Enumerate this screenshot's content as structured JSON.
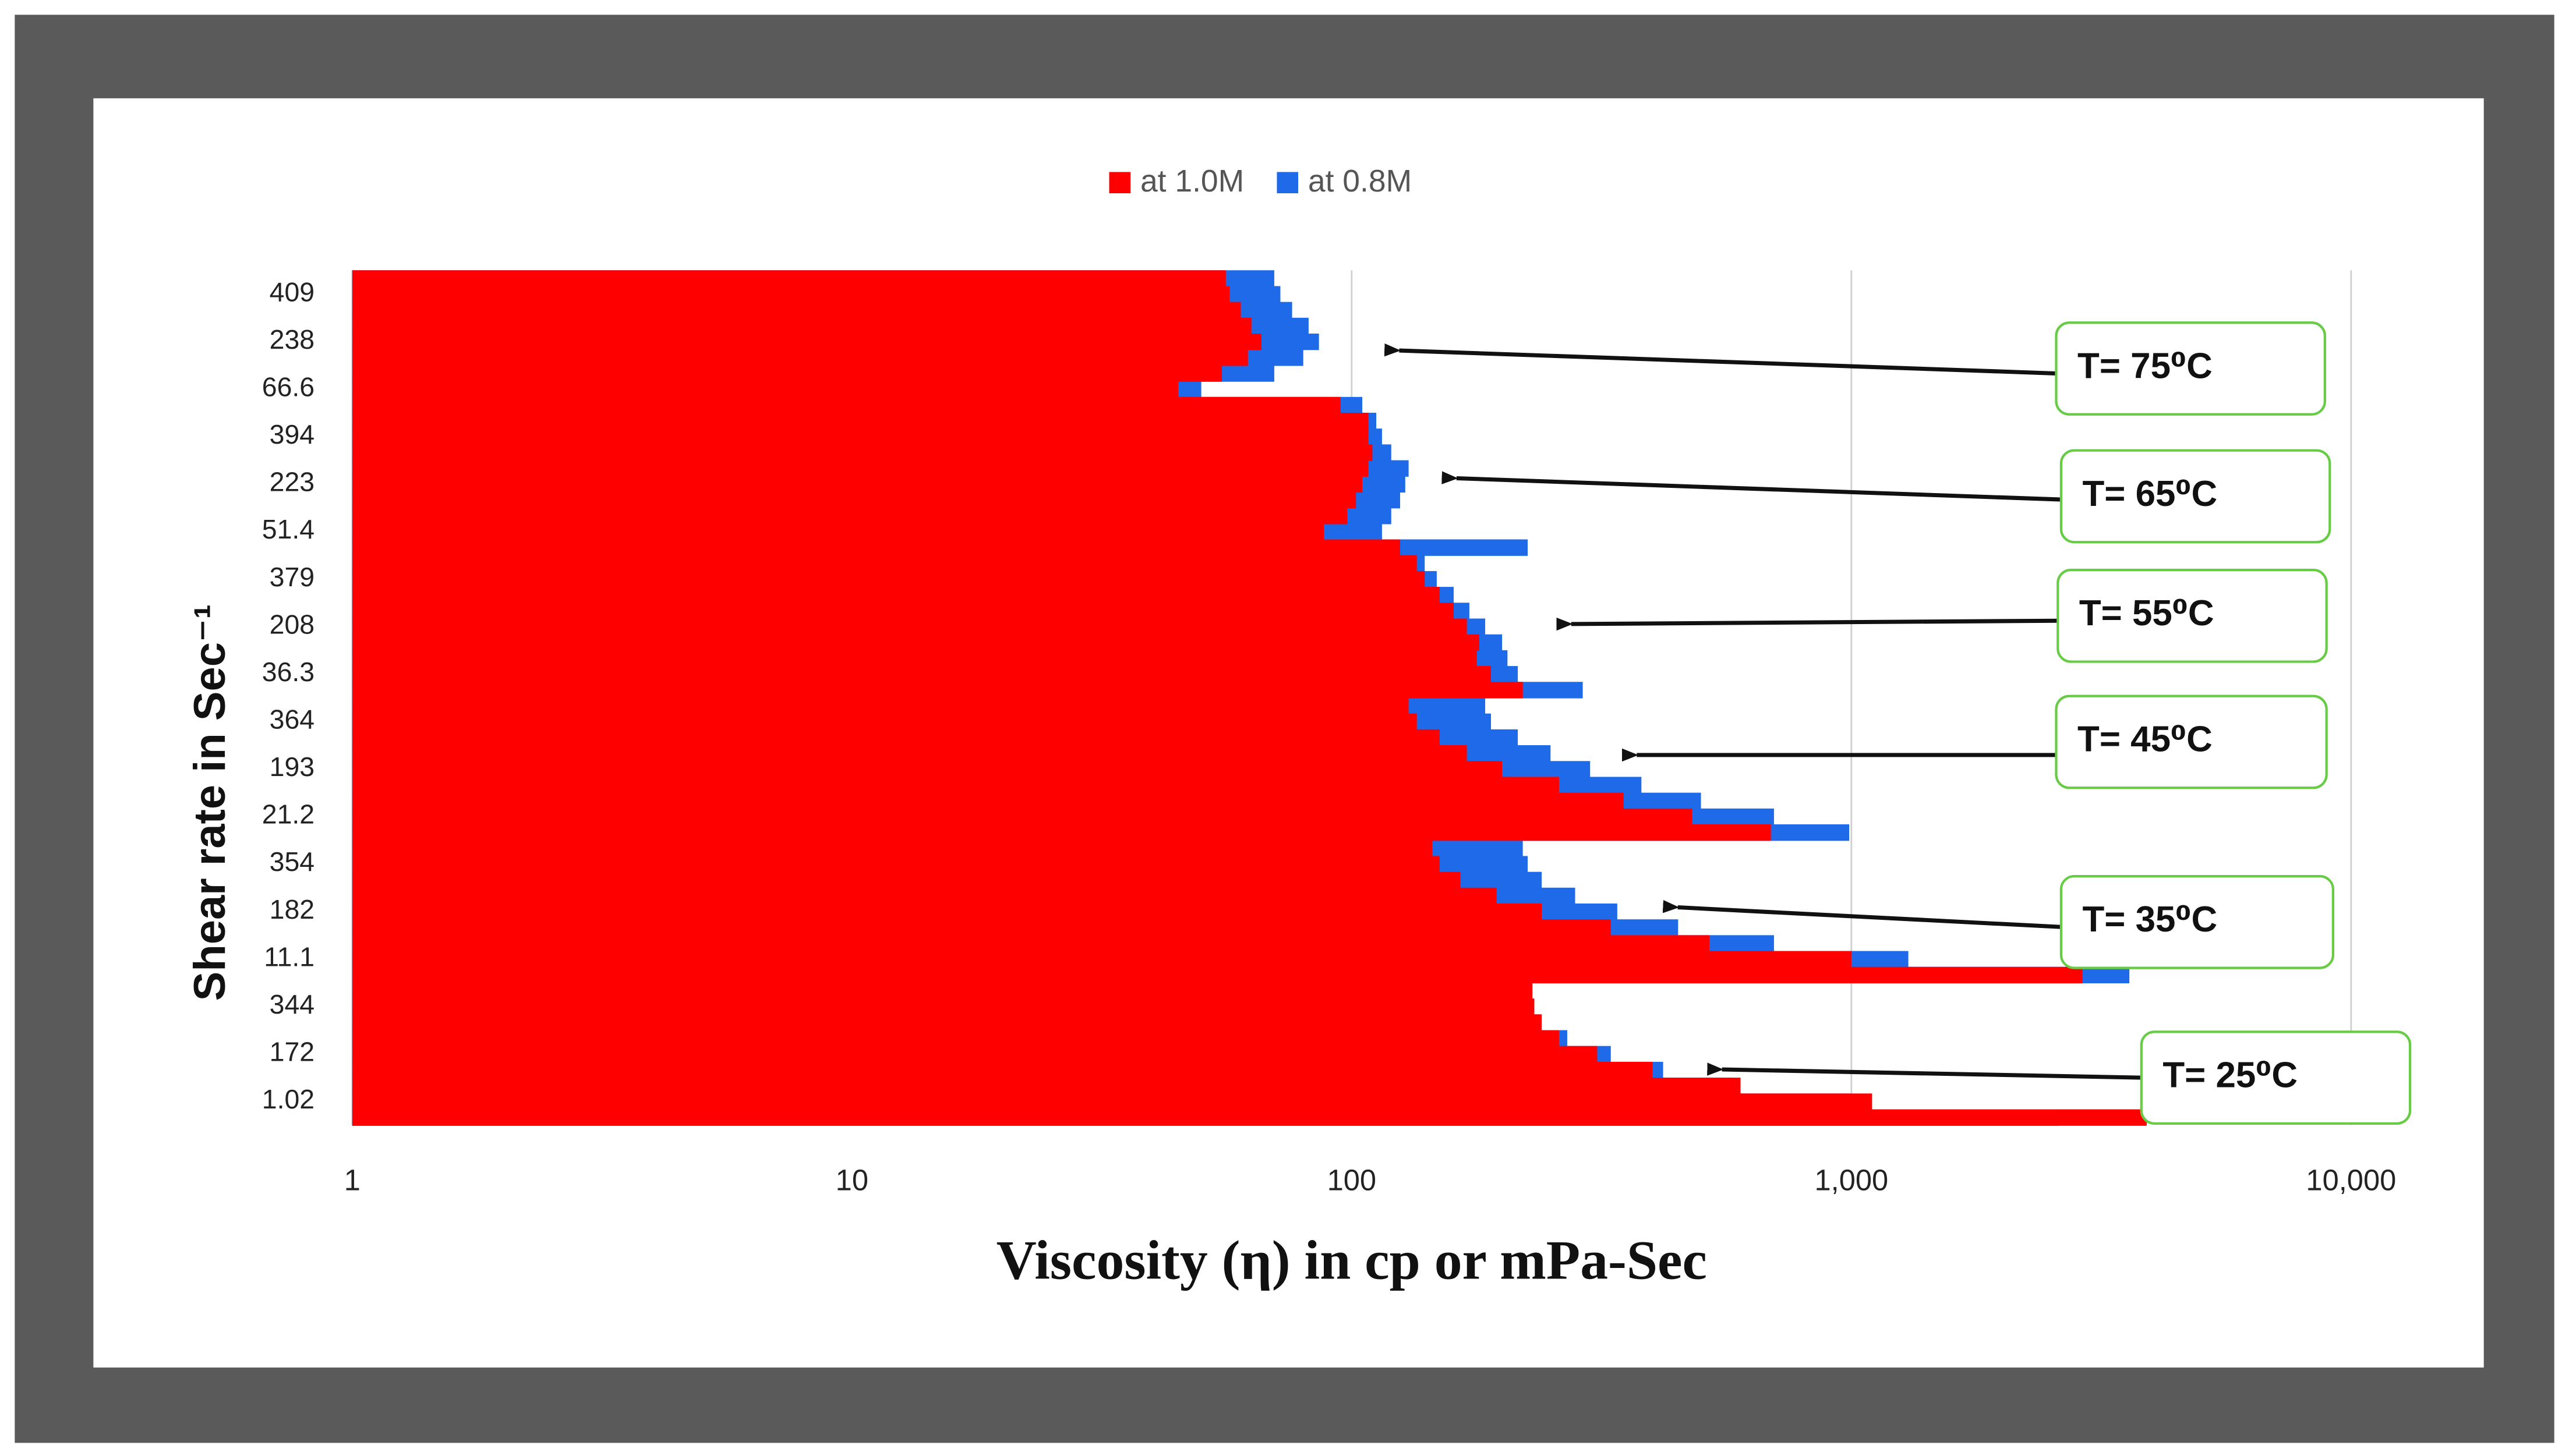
{
  "chart_data": {
    "type": "bar",
    "orientation": "horizontal",
    "xlabel": "Viscosity (η)  in cp or mPa-Sec",
    "ylabel": "Shear rate in Sec⁻¹",
    "xscale": "log",
    "xlim": [
      1,
      10000
    ],
    "xticks": [
      1,
      10,
      100,
      {
        "value": 1000,
        "label": "1,000"
      },
      {
        "value": 10000,
        "label": "10,000"
      }
    ],
    "grid": true,
    "legend": "top",
    "categories": [
      null,
      "409",
      null,
      null,
      "238",
      null,
      null,
      "66.6",
      null,
      null,
      "394",
      null,
      null,
      "223",
      null,
      null,
      "51.4",
      null,
      null,
      "379",
      null,
      null,
      "208",
      null,
      null,
      "36.3",
      null,
      null,
      "364",
      null,
      null,
      "193",
      null,
      null,
      "21.2",
      null,
      null,
      "354",
      null,
      null,
      "182",
      null,
      null,
      "11.1",
      null,
      null,
      "344",
      null,
      null,
      "172",
      null,
      null,
      "1.02",
      null
    ],
    "series": [
      {
        "name": "at 1.0M",
        "color": "#ff0000",
        "values": [
          56,
          57,
          60,
          63,
          66,
          62,
          55,
          45,
          95,
          108,
          108,
          110,
          108,
          105,
          102,
          98,
          88,
          125,
          135,
          140,
          150,
          160,
          170,
          180,
          178,
          190,
          220,
          130,
          135,
          150,
          170,
          200,
          260,
          350,
          480,
          690,
          145,
          150,
          165,
          195,
          240,
          330,
          520,
          1000,
          2900,
          230,
          232,
          240,
          260,
          310,
          400,
          600,
          1100,
          3900
        ]
      },
      {
        "name": "at 0.8M",
        "color": "#1f6ae8",
        "values": [
          70,
          72,
          76,
          82,
          86,
          80,
          70,
          50,
          105,
          112,
          115,
          120,
          130,
          128,
          125,
          120,
          115,
          225,
          140,
          148,
          160,
          172,
          185,
          200,
          205,
          215,
          290,
          185,
          190,
          215,
          250,
          300,
          380,
          500,
          700,
          990,
          220,
          225,
          240,
          280,
          340,
          450,
          700,
          1300,
          3600,
          225,
          228,
          238,
          270,
          330,
          420,
          580,
          1000,
          2600
        ]
      }
    ],
    "annotations": [
      "T= 75⁰C",
      "T= 65⁰C",
      "T= 55⁰C",
      "T= 45⁰C",
      "T= 35⁰C",
      "T= 25⁰C"
    ],
    "annotation_border_color": "#66cc44"
  }
}
